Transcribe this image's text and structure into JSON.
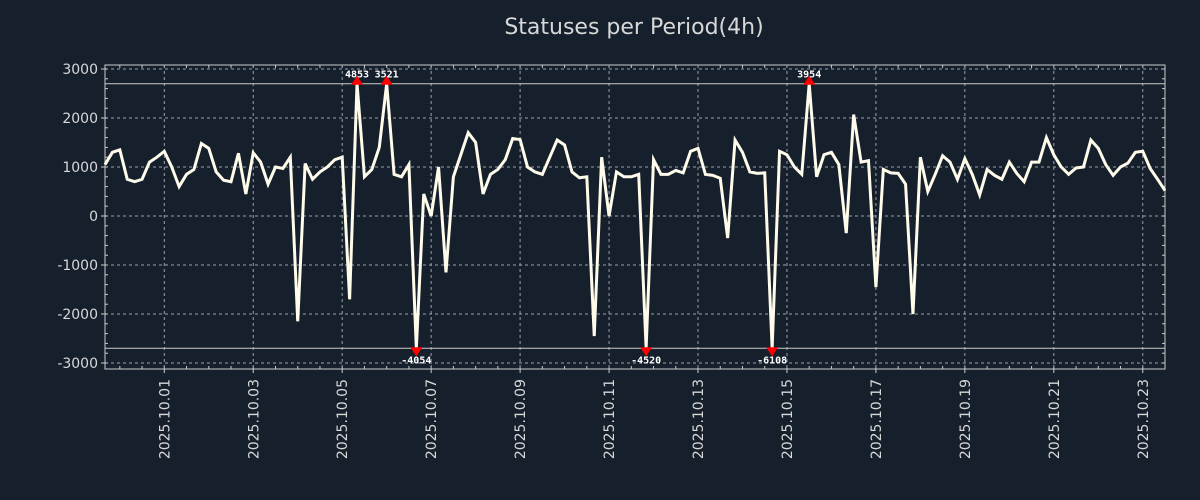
{
  "chart_data": {
    "type": "line",
    "title": "Statuses per Period(4h)",
    "xlabel": "",
    "ylabel": "",
    "start": "2025-09-29T16:00",
    "interval_hours": 4,
    "ylim": [
      -3100,
      3100
    ],
    "clip_limits": [
      -2700,
      2700
    ],
    "yticks": [
      3000,
      2000,
      1000,
      0,
      -1000,
      -2000,
      -3000
    ],
    "ytick_labels": [
      "3000",
      "2000",
      "1000",
      "0",
      "-1000",
      "-2000",
      "-3000"
    ],
    "xtick_labels": [
      "2025.10.01",
      "2025.10.03",
      "2025.10.05",
      "2025.10.07",
      "2025.10.09",
      "2025.10.11",
      "2025.10.13",
      "2025.10.15",
      "2025.10.17",
      "2025.10.19",
      "2025.10.21",
      "2025.10.23"
    ],
    "grid": true,
    "line_color": "#fffbea",
    "marker_color": "#ff0000",
    "annotations": [
      {
        "index": 34,
        "label": "4853"
      },
      {
        "index": 38,
        "label": "3521"
      },
      {
        "index": 42,
        "label": "-4054"
      },
      {
        "index": 73,
        "label": "-4520"
      },
      {
        "index": 90,
        "label": "-6108"
      },
      {
        "index": 95,
        "label": "3954"
      }
    ],
    "values": [
      1050,
      1300,
      1350,
      750,
      700,
      750,
      1100,
      1200,
      1320,
      1000,
      600,
      850,
      950,
      1480,
      1380,
      900,
      730,
      700,
      1280,
      450,
      1290,
      1100,
      650,
      1000,
      970,
      1200,
      -2150,
      1070,
      750,
      900,
      1000,
      1150,
      1200,
      -1700,
      4853,
      800,
      950,
      1400,
      3521,
      850,
      800,
      1050,
      -4054,
      450,
      0,
      1000,
      -1150,
      800,
      1250,
      1700,
      1500,
      450,
      850,
      950,
      1150,
      1580,
      1560,
      1000,
      900,
      850,
      1200,
      1550,
      1450,
      900,
      780,
      800,
      -2450,
      1200,
      0,
      900,
      800,
      800,
      850,
      -4520,
      1150,
      850,
      850,
      930,
      880,
      1320,
      1380,
      850,
      830,
      770,
      -450,
      1550,
      1300,
      900,
      870,
      880,
      -6108,
      1320,
      1250,
      1000,
      850,
      3954,
      800,
      1250,
      1300,
      1050,
      -350,
      2070,
      1100,
      1130,
      -1450,
      950,
      880,
      870,
      650,
      -2000,
      1200,
      500,
      850,
      1230,
      1100,
      750,
      1170,
      850,
      430,
      950,
      830,
      750,
      1100,
      870,
      700,
      1100,
      1100,
      1600,
      1250,
      1000,
      850,
      980,
      1000,
      1550,
      1380,
      1050,
      830,
      1000,
      1080,
      1300,
      1320,
      970,
      750,
      520
    ]
  }
}
